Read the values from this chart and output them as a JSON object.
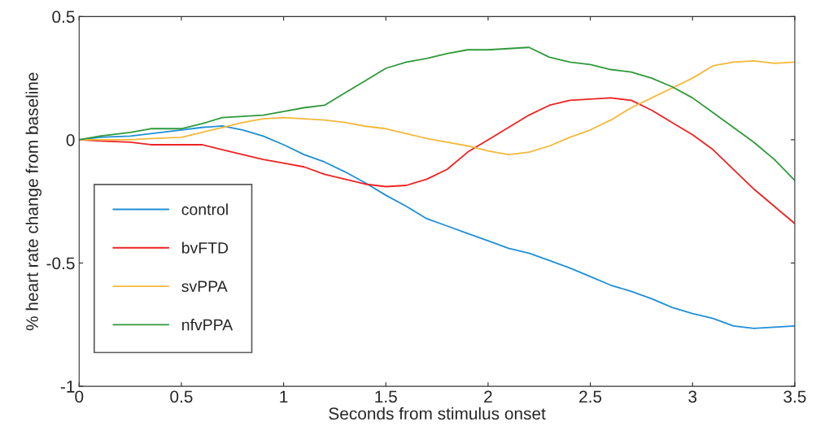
{
  "chart_data": {
    "type": "line",
    "xlabel": "Seconds from stimulus onset",
    "ylabel": "% heart rate change from baseline",
    "x": [
      0,
      0.1,
      0.25,
      0.35,
      0.5,
      0.6,
      0.7,
      0.8,
      0.9,
      1.0,
      1.1,
      1.2,
      1.3,
      1.4,
      1.5,
      1.6,
      1.7,
      1.8,
      1.9,
      2.0,
      2.1,
      2.2,
      2.3,
      2.4,
      2.5,
      2.6,
      2.7,
      2.8,
      2.9,
      3.0,
      3.1,
      3.2,
      3.3,
      3.4,
      3.5
    ],
    "series": [
      {
        "name": "control",
        "color": "#1f8fd6",
        "values": [
          0,
          0.01,
          0.015,
          0.025,
          0.04,
          0.05,
          0.056,
          0.04,
          0.015,
          -0.02,
          -0.06,
          -0.09,
          -0.13,
          -0.175,
          -0.225,
          -0.27,
          -0.32,
          -0.35,
          -0.38,
          -0.41,
          -0.44,
          -0.46,
          -0.49,
          -0.52,
          -0.555,
          -0.59,
          -0.615,
          -0.645,
          -0.68,
          -0.705,
          -0.725,
          -0.755,
          -0.765,
          -0.76,
          -0.755
        ]
      },
      {
        "name": "bvFTD",
        "color": "#f02222",
        "values": [
          0,
          -0.005,
          -0.01,
          -0.02,
          -0.02,
          -0.02,
          -0.04,
          -0.06,
          -0.08,
          -0.095,
          -0.11,
          -0.14,
          -0.16,
          -0.18,
          -0.19,
          -0.185,
          -0.16,
          -0.12,
          -0.05,
          0.0,
          0.05,
          0.1,
          0.14,
          0.16,
          0.165,
          0.17,
          0.16,
          0.12,
          0.07,
          0.02,
          -0.04,
          -0.12,
          -0.2,
          -0.27,
          -0.34
        ]
      },
      {
        "name": "svPPA",
        "color": "#f5b83a",
        "values": [
          0,
          0.0,
          0.0,
          0.005,
          0.01,
          0.03,
          0.05,
          0.07,
          0.085,
          0.09,
          0.085,
          0.08,
          0.07,
          0.055,
          0.045,
          0.025,
          0.005,
          -0.01,
          -0.025,
          -0.045,
          -0.06,
          -0.05,
          -0.025,
          0.01,
          0.04,
          0.08,
          0.13,
          0.17,
          0.21,
          0.25,
          0.3,
          0.315,
          0.32,
          0.31,
          0.315
        ]
      },
      {
        "name": "nfvPPA",
        "color": "#2f9a3a",
        "values": [
          0,
          0.015,
          0.03,
          0.045,
          0.045,
          0.065,
          0.09,
          0.095,
          0.1,
          0.115,
          0.13,
          0.14,
          0.19,
          0.24,
          0.29,
          0.315,
          0.33,
          0.35,
          0.365,
          0.365,
          0.37,
          0.375,
          0.335,
          0.315,
          0.305,
          0.285,
          0.275,
          0.25,
          0.215,
          0.17,
          0.11,
          0.05,
          -0.01,
          -0.08,
          -0.165
        ]
      }
    ],
    "xlim": [
      0,
      3.5
    ],
    "xticks": [
      0,
      0.5,
      1,
      1.5,
      2,
      2.5,
      3,
      3.5
    ],
    "ylim": [
      -1,
      0.5
    ],
    "yticks": [
      -1,
      -0.5,
      0,
      0.5
    ],
    "grid": false,
    "legend": "left",
    "marker": "none",
    "line_style": "solid"
  }
}
